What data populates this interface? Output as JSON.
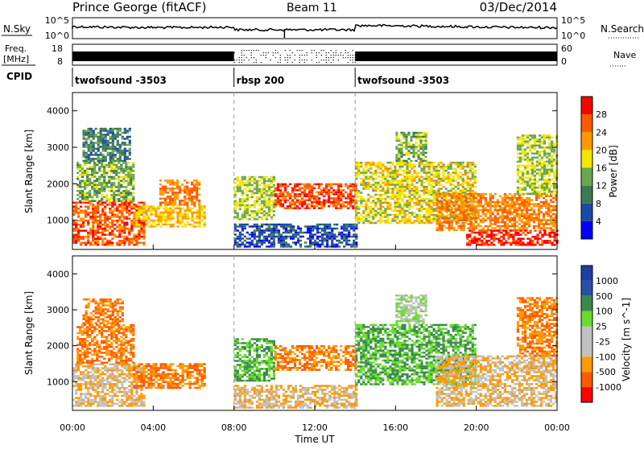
{
  "header": {
    "station": "Prince George (fitACF)",
    "beam": "Beam 11",
    "date": "03/Dec/2014"
  },
  "aux_panels": {
    "nsky_label": "N.Sky",
    "nsky_ticks": [
      "10^5",
      "10^0"
    ],
    "nsearch_label": "N.Search",
    "nsearch_ticks": [
      "10^5",
      "10^0"
    ],
    "freq_label_1": "Freq.",
    "freq_label_2": "[MHz]",
    "freq_ticks": [
      "18",
      "8"
    ],
    "nave_label": "Nave",
    "nave_ticks": [
      "60",
      "0"
    ],
    "cpid_label": "CPID",
    "cpid_segments": [
      {
        "label": "twofsound -3503",
        "start_hour": 0,
        "end_hour": 8
      },
      {
        "label": "rbsp 200",
        "start_hour": 8,
        "end_hour": 14
      },
      {
        "label": "twofsound -3503",
        "start_hour": 14,
        "end_hour": 24
      }
    ]
  },
  "x_axis": {
    "label": "Time UT",
    "ticks": [
      "00:00",
      "04:00",
      "08:00",
      "12:00",
      "16:00",
      "20:00",
      "00:00"
    ]
  },
  "colors": {
    "power_scale": [
      "#0000ff",
      "#1a4aa6",
      "#3c7a52",
      "#6aa84f",
      "#f2e600",
      "#ff9900",
      "#ff5a00",
      "#ff0000"
    ],
    "velocity_scale": [
      "#ff0000",
      "#ff5a00",
      "#ff9900",
      "#c0c0c0",
      "#c0c0c0",
      "#6adb2f",
      "#3b8a4b",
      "#2a4fa8",
      "#1f3fa0"
    ]
  },
  "chart_data": [
    {
      "type": "heatmap",
      "title": "",
      "xlabel": "Time UT",
      "ylabel": "Slant Range [km]",
      "xlim": [
        0,
        24
      ],
      "ylim": [
        200,
        4500
      ],
      "yticks": [
        1000,
        2000,
        3000,
        4000
      ],
      "colorbar_label": "Power [dB]",
      "colorbar_ticks": [
        4,
        8,
        12,
        16,
        20,
        24,
        28
      ],
      "colorbar_range": [
        0,
        32
      ],
      "echo_regions": [
        {
          "t0": 0.0,
          "t1": 3.5,
          "r0": 300,
          "r1": 1500,
          "value": 26
        },
        {
          "t0": 0.2,
          "t1": 3.0,
          "r0": 1500,
          "r1": 2600,
          "value": 14
        },
        {
          "t0": 0.5,
          "t1": 2.8,
          "r0": 2600,
          "r1": 3500,
          "value": 10
        },
        {
          "t0": 3.0,
          "t1": 6.5,
          "r0": 800,
          "r1": 1400,
          "value": 20
        },
        {
          "t0": 4.3,
          "t1": 6.3,
          "r0": 1400,
          "r1": 2100,
          "value": 24
        },
        {
          "t0": 8.0,
          "t1": 10.0,
          "r0": 1000,
          "r1": 2200,
          "value": 16
        },
        {
          "t0": 10.0,
          "t1": 14.0,
          "r0": 1300,
          "r1": 2000,
          "value": 27
        },
        {
          "t0": 8.0,
          "t1": 14.0,
          "r0": 250,
          "r1": 900,
          "value": 6
        },
        {
          "t0": 14.0,
          "t1": 20.0,
          "r0": 900,
          "r1": 2600,
          "value": 18
        },
        {
          "t0": 16.0,
          "t1": 17.5,
          "r0": 2600,
          "r1": 3400,
          "value": 14
        },
        {
          "t0": 18.0,
          "t1": 24.0,
          "r0": 700,
          "r1": 1700,
          "value": 24
        },
        {
          "t0": 19.5,
          "t1": 24.0,
          "r0": 300,
          "r1": 700,
          "value": 29
        },
        {
          "t0": 22.0,
          "t1": 24.0,
          "r0": 1700,
          "r1": 3300,
          "value": 16
        }
      ]
    },
    {
      "type": "heatmap",
      "title": "",
      "xlabel": "Time UT",
      "ylabel": "Slant Range [km]",
      "xlim": [
        0,
        24
      ],
      "ylim": [
        200,
        4500
      ],
      "yticks": [
        1000,
        2000,
        3000,
        4000
      ],
      "colorbar_label": "Velocity [m s^-1]",
      "colorbar_ticks": [
        1000,
        500,
        100,
        25,
        -25,
        -100,
        -500,
        -1000
      ],
      "echo_regions": [
        {
          "t0": 0.0,
          "t1": 3.5,
          "r0": 300,
          "r1": 1500,
          "value": -25
        },
        {
          "t0": 0.2,
          "t1": 3.0,
          "r0": 1500,
          "r1": 2600,
          "value": -100
        },
        {
          "t0": 0.5,
          "t1": 2.5,
          "r0": 2600,
          "r1": 3300,
          "value": -100
        },
        {
          "t0": 3.0,
          "t1": 6.5,
          "r0": 800,
          "r1": 1500,
          "value": -100
        },
        {
          "t0": 8.0,
          "t1": 10.0,
          "r0": 1000,
          "r1": 2200,
          "value": 100
        },
        {
          "t0": 10.0,
          "t1": 14.0,
          "r0": 1300,
          "r1": 2000,
          "value": -100
        },
        {
          "t0": 8.0,
          "t1": 14.0,
          "r0": 250,
          "r1": 900,
          "value": -25
        },
        {
          "t0": 14.0,
          "t1": 20.0,
          "r0": 900,
          "r1": 2600,
          "value": 100
        },
        {
          "t0": 16.0,
          "t1": 17.5,
          "r0": 2600,
          "r1": 3400,
          "value": 25
        },
        {
          "t0": 18.0,
          "t1": 24.0,
          "r0": 300,
          "r1": 1700,
          "value": -25
        },
        {
          "t0": 22.0,
          "t1": 24.0,
          "r0": 1700,
          "r1": 3300,
          "value": -100
        }
      ]
    }
  ]
}
